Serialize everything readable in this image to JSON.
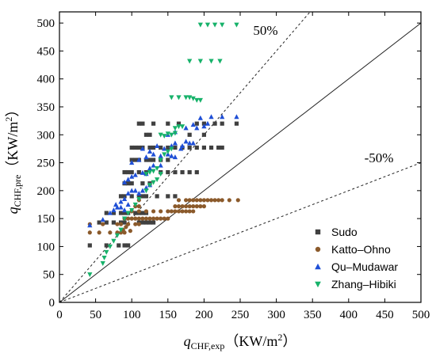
{
  "chart_data": {
    "type": "scatter",
    "x_label": {
      "main": "q",
      "sub": "CHF,exp",
      "unit_pre": "（KW/m",
      "unit_sup": "2",
      "unit_post": "）"
    },
    "y_label": {
      "main": "q",
      "sub": "CHF,pre",
      "unit_pre": "（KW/m",
      "unit_sup": "2",
      "unit_post": "）"
    },
    "xlim": [
      0,
      500
    ],
    "ylim": [
      0,
      520
    ],
    "x_ticks": [
      "0",
      "50",
      "100",
      "150",
      "200",
      "250",
      "300",
      "350",
      "400",
      "450",
      "500"
    ],
    "y_ticks": [
      "0",
      "50",
      "100",
      "150",
      "200",
      "250",
      "300",
      "350",
      "400",
      "450",
      "500"
    ],
    "reference_lines": [
      {
        "label": "",
        "slope": 1.0,
        "style": "solid"
      },
      {
        "label": "50%",
        "slope": 1.5,
        "style": "dashed"
      },
      {
        "label": "-50%",
        "slope": 0.5,
        "style": "dashed"
      }
    ],
    "legend_position": "bottom-right",
    "series": [
      {
        "name": "Sudo",
        "marker": "square",
        "color": "#404040",
        "points": [
          [
            42,
            102
          ],
          [
            65,
            102
          ],
          [
            82,
            102
          ],
          [
            90,
            102
          ],
          [
            95,
            102
          ],
          [
            55,
            143
          ],
          [
            65,
            143
          ],
          [
            75,
            143
          ],
          [
            85,
            143
          ],
          [
            90,
            143
          ],
          [
            110,
            143
          ],
          [
            115,
            143
          ],
          [
            120,
            143
          ],
          [
            125,
            143
          ],
          [
            130,
            143
          ],
          [
            65,
            160
          ],
          [
            75,
            160
          ],
          [
            85,
            160
          ],
          [
            90,
            160
          ],
          [
            95,
            160
          ],
          [
            105,
            160
          ],
          [
            110,
            160
          ],
          [
            115,
            160
          ],
          [
            120,
            160
          ],
          [
            85,
            190
          ],
          [
            90,
            190
          ],
          [
            100,
            190
          ],
          [
            110,
            190
          ],
          [
            115,
            190
          ],
          [
            120,
            190
          ],
          [
            135,
            190
          ],
          [
            150,
            190
          ],
          [
            160,
            190
          ],
          [
            90,
            213
          ],
          [
            95,
            213
          ],
          [
            100,
            213
          ],
          [
            115,
            213
          ],
          [
            125,
            213
          ],
          [
            90,
            233
          ],
          [
            95,
            233
          ],
          [
            100,
            233
          ],
          [
            110,
            233
          ],
          [
            120,
            233
          ],
          [
            140,
            233
          ],
          [
            150,
            233
          ],
          [
            160,
            233
          ],
          [
            170,
            233
          ],
          [
            180,
            233
          ],
          [
            190,
            233
          ],
          [
            100,
            255
          ],
          [
            105,
            255
          ],
          [
            110,
            255
          ],
          [
            120,
            255
          ],
          [
            125,
            255
          ],
          [
            130,
            255
          ],
          [
            140,
            255
          ],
          [
            150,
            255
          ],
          [
            100,
            277
          ],
          [
            105,
            277
          ],
          [
            110,
            277
          ],
          [
            115,
            277
          ],
          [
            125,
            277
          ],
          [
            130,
            277
          ],
          [
            140,
            277
          ],
          [
            150,
            277
          ],
          [
            160,
            277
          ],
          [
            170,
            277
          ],
          [
            180,
            277
          ],
          [
            190,
            277
          ],
          [
            200,
            277
          ],
          [
            210,
            277
          ],
          [
            220,
            277
          ],
          [
            225,
            277
          ],
          [
            110,
            320
          ],
          [
            115,
            320
          ],
          [
            130,
            320
          ],
          [
            150,
            320
          ],
          [
            165,
            320
          ],
          [
            190,
            320
          ],
          [
            200,
            320
          ],
          [
            215,
            320
          ],
          [
            225,
            320
          ],
          [
            245,
            320
          ],
          [
            120,
            300
          ],
          [
            125,
            300
          ],
          [
            180,
            300
          ],
          [
            200,
            300
          ]
        ]
      },
      {
        "name": "Katto–Ohno",
        "marker": "circle",
        "color": "#8b5a2b",
        "points": [
          [
            42,
            125
          ],
          [
            42,
            140
          ],
          [
            55,
            125
          ],
          [
            60,
            140
          ],
          [
            70,
            125
          ],
          [
            80,
            125
          ],
          [
            85,
            125
          ],
          [
            90,
            125
          ],
          [
            80,
            140
          ],
          [
            85,
            140
          ],
          [
            95,
            140
          ],
          [
            105,
            140
          ],
          [
            110,
            140
          ],
          [
            90,
            150
          ],
          [
            95,
            150
          ],
          [
            100,
            150
          ],
          [
            105,
            150
          ],
          [
            110,
            150
          ],
          [
            115,
            150
          ],
          [
            120,
            150
          ],
          [
            125,
            150
          ],
          [
            130,
            150
          ],
          [
            135,
            150
          ],
          [
            140,
            150
          ],
          [
            145,
            150
          ],
          [
            150,
            150
          ],
          [
            100,
            163
          ],
          [
            110,
            163
          ],
          [
            120,
            163
          ],
          [
            130,
            163
          ],
          [
            140,
            163
          ],
          [
            150,
            163
          ],
          [
            155,
            163
          ],
          [
            160,
            163
          ],
          [
            165,
            163
          ],
          [
            170,
            163
          ],
          [
            175,
            163
          ],
          [
            180,
            163
          ],
          [
            185,
            163
          ],
          [
            105,
            172
          ],
          [
            110,
            172
          ],
          [
            160,
            172
          ],
          [
            165,
            172
          ],
          [
            170,
            172
          ],
          [
            175,
            172
          ],
          [
            180,
            172
          ],
          [
            185,
            172
          ],
          [
            190,
            172
          ],
          [
            195,
            172
          ],
          [
            200,
            172
          ],
          [
            110,
            183
          ],
          [
            165,
            183
          ],
          [
            175,
            183
          ],
          [
            180,
            183
          ],
          [
            185,
            183
          ],
          [
            190,
            183
          ],
          [
            195,
            183
          ],
          [
            200,
            183
          ],
          [
            205,
            183
          ],
          [
            210,
            183
          ],
          [
            215,
            183
          ],
          [
            220,
            183
          ],
          [
            225,
            183
          ],
          [
            235,
            183
          ],
          [
            247,
            183
          ],
          [
            88,
            130
          ],
          [
            92,
            135
          ],
          [
            98,
            128
          ]
        ]
      },
      {
        "name": "Qu–Mudawar",
        "marker": "triangle-up",
        "color": "#1f4fd6",
        "points": [
          [
            42,
            138
          ],
          [
            60,
            148
          ],
          [
            70,
            160
          ],
          [
            75,
            165
          ],
          [
            78,
            175
          ],
          [
            80,
            170
          ],
          [
            85,
            170
          ],
          [
            90,
            165
          ],
          [
            95,
            175
          ],
          [
            85,
            180
          ],
          [
            90,
            185
          ],
          [
            95,
            195
          ],
          [
            100,
            200
          ],
          [
            105,
            200
          ],
          [
            110,
            195
          ],
          [
            115,
            200
          ],
          [
            120,
            205
          ],
          [
            125,
            210
          ],
          [
            90,
            215
          ],
          [
            95,
            220
          ],
          [
            100,
            225
          ],
          [
            105,
            228
          ],
          [
            115,
            232
          ],
          [
            120,
            230
          ],
          [
            125,
            240
          ],
          [
            130,
            245
          ],
          [
            100,
            250
          ],
          [
            110,
            255
          ],
          [
            120,
            260
          ],
          [
            130,
            265
          ],
          [
            140,
            262
          ],
          [
            150,
            265
          ],
          [
            155,
            262
          ],
          [
            115,
            275
          ],
          [
            125,
            270
          ],
          [
            135,
            280
          ],
          [
            145,
            275
          ],
          [
            155,
            280
          ],
          [
            160,
            285
          ],
          [
            170,
            280
          ],
          [
            175,
            288
          ],
          [
            180,
            285
          ],
          [
            185,
            285
          ],
          [
            150,
            300
          ],
          [
            160,
            305
          ],
          [
            175,
            312
          ],
          [
            185,
            318
          ],
          [
            190,
            312
          ],
          [
            200,
            315
          ],
          [
            205,
            320
          ],
          [
            195,
            330
          ],
          [
            210,
            332
          ],
          [
            225,
            332
          ],
          [
            245,
            332
          ],
          [
            140,
            245
          ],
          [
            160,
            260
          ],
          [
            168,
            275
          ]
        ]
      },
      {
        "name": "Zhang–Hibiki",
        "marker": "triangle-down",
        "color": "#17b26a",
        "points": [
          [
            42,
            50
          ],
          [
            60,
            70
          ],
          [
            62,
            80
          ],
          [
            65,
            90
          ],
          [
            70,
            100
          ],
          [
            75,
            110
          ],
          [
            80,
            120
          ],
          [
            85,
            130
          ],
          [
            90,
            150
          ],
          [
            95,
            160
          ],
          [
            100,
            165
          ],
          [
            105,
            175
          ],
          [
            110,
            185
          ],
          [
            120,
            200
          ],
          [
            125,
            210
          ],
          [
            130,
            215
          ],
          [
            135,
            220
          ],
          [
            140,
            230
          ],
          [
            120,
            230
          ],
          [
            125,
            233
          ],
          [
            130,
            235
          ],
          [
            135,
            240
          ],
          [
            140,
            255
          ],
          [
            145,
            265
          ],
          [
            150,
            270
          ],
          [
            155,
            275
          ],
          [
            140,
            300
          ],
          [
            145,
            298
          ],
          [
            150,
            302
          ],
          [
            155,
            300
          ],
          [
            160,
            303
          ],
          [
            160,
            312
          ],
          [
            165,
            315
          ],
          [
            170,
            315
          ],
          [
            155,
            367
          ],
          [
            165,
            367
          ],
          [
            175,
            367
          ],
          [
            180,
            367
          ],
          [
            185,
            365
          ],
          [
            190,
            362
          ],
          [
            195,
            362
          ],
          [
            180,
            432
          ],
          [
            195,
            432
          ],
          [
            210,
            432
          ],
          [
            222,
            432
          ],
          [
            195,
            497
          ],
          [
            205,
            497
          ],
          [
            215,
            497
          ],
          [
            225,
            497
          ],
          [
            245,
            497
          ]
        ]
      }
    ]
  }
}
